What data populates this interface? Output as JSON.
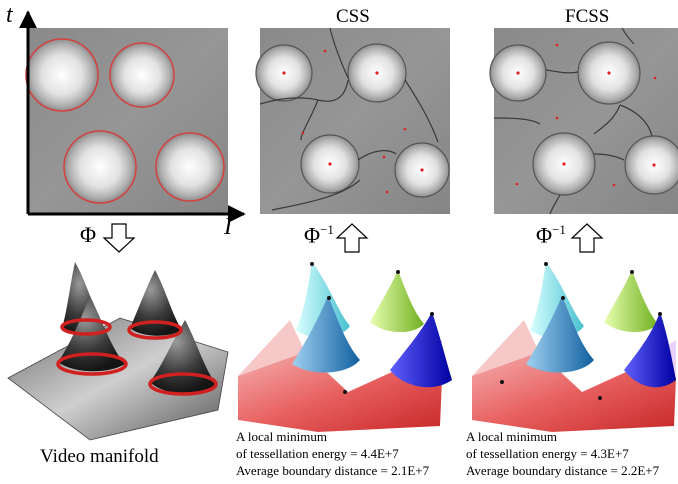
{
  "figure": {
    "css_title": "CSS",
    "fcss_title": "FCSS",
    "axis_t": "t",
    "axis_I": "I",
    "phi": "Φ",
    "phi_inv": "Φ",
    "phi_inv_sup": "−1",
    "video_caption": "Video manifold",
    "css_stats": {
      "line1": "A local minimum",
      "line2": "of tessellation energy = 4.4E+7",
      "line3": "Average boundary distance = 2.1E+7"
    },
    "fcss_stats": {
      "line1": "A local minimum",
      "line2": "of tessellation energy = 4.3E+7",
      "line3": "Average boundary distance = 2.2E+7"
    },
    "colors": {
      "panel_gray": "#8a8a8a",
      "circle_red": "#d44040",
      "cell_border": "#3a3a3a",
      "seed_red": "#e02020"
    }
  }
}
